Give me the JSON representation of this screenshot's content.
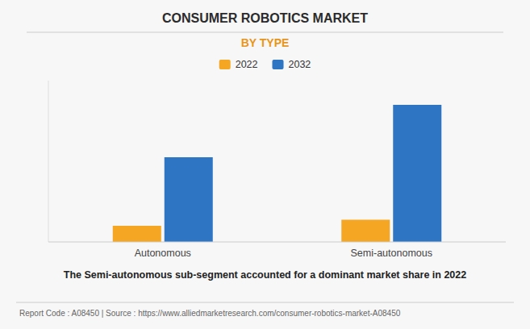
{
  "chart_data": {
    "type": "bar",
    "title": "CONSUMER ROBOTICS MARKET",
    "subtitle": "BY TYPE",
    "categories": [
      "Autonomous",
      "Semi-autonomous"
    ],
    "series": [
      {
        "name": "2022",
        "color": "#F5A623",
        "values": [
          0.8,
          1.1
        ]
      },
      {
        "name": "2032",
        "color": "#2E75C3",
        "values": [
          4.2,
          6.8
        ]
      }
    ],
    "ylim": [
      0,
      8
    ],
    "grid": false,
    "legend": "top",
    "tick_labels": "x",
    "annotations": [
      "The Semi-autonomous sub-segment accounted for a dominant market share in 2022",
      "Report Code : A08450  |  Source : https://www.alliedmarketresearch.com/consumer-robotics-market-A08450"
    ]
  }
}
